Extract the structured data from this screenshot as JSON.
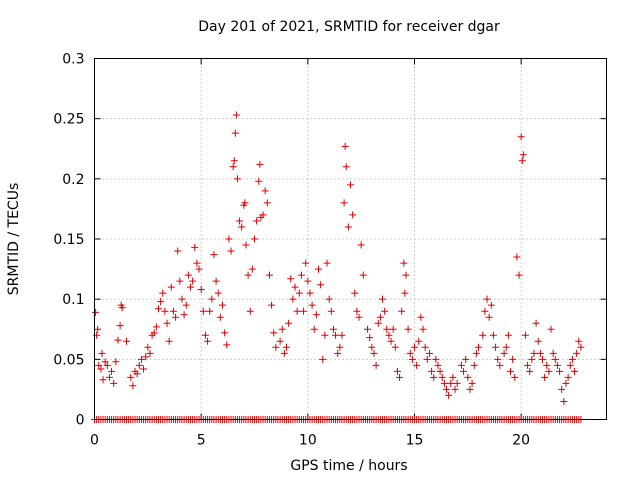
{
  "chart_data": {
    "type": "scatter",
    "title": "Day 201 of 2021, SRMTID for receiver dgar",
    "xlabel": "GPS time / hours",
    "ylabel": "SRMTID / TECUs",
    "xlim": [
      0,
      24
    ],
    "ylim": [
      0,
      0.3
    ],
    "xticks": [
      0,
      5,
      10,
      15,
      20
    ],
    "yticks": [
      0,
      0.05,
      0.1,
      0.15,
      0.2,
      0.25,
      0.3
    ],
    "xtick_labels": [
      "0",
      "5",
      "10",
      "15",
      "20"
    ],
    "ytick_labels": [
      "0",
      "0.05",
      "0.1",
      "0.15",
      "0.2",
      "0.25",
      "0.3"
    ],
    "grid": true,
    "marker": "+",
    "color": "#dd0000",
    "series": [
      {
        "name": "SRMTID",
        "points": [
          [
            0.05,
            0.089
          ],
          [
            0.1,
            0.07
          ],
          [
            0.15,
            0.075
          ],
          [
            0.2,
            0.045
          ],
          [
            0.3,
            0.042
          ],
          [
            0.35,
            0.055
          ],
          [
            0.4,
            0.033
          ],
          [
            0.5,
            0.048
          ],
          [
            0.6,
            0.045
          ],
          [
            0.7,
            0.035
          ],
          [
            0.8,
            0.04
          ],
          [
            0.9,
            0.03
          ],
          [
            1.0,
            0.048
          ],
          [
            1.1,
            0.066
          ],
          [
            1.2,
            0.078
          ],
          [
            1.25,
            0.095
          ],
          [
            1.3,
            0.093
          ],
          [
            1.5,
            0.065
          ],
          [
            1.7,
            0.035
          ],
          [
            1.8,
            0.028
          ],
          [
            1.9,
            0.04
          ],
          [
            2.0,
            0.038
          ],
          [
            2.1,
            0.045
          ],
          [
            2.2,
            0.05
          ],
          [
            2.3,
            0.042
          ],
          [
            2.4,
            0.052
          ],
          [
            2.5,
            0.06
          ],
          [
            2.6,
            0.055
          ],
          [
            2.7,
            0.07
          ],
          [
            2.8,
            0.072
          ],
          [
            2.9,
            0.077
          ],
          [
            3.0,
            0.092
          ],
          [
            3.1,
            0.098
          ],
          [
            3.2,
            0.105
          ],
          [
            3.3,
            0.09
          ],
          [
            3.4,
            0.08
          ],
          [
            3.5,
            0.065
          ],
          [
            3.6,
            0.11
          ],
          [
            3.7,
            0.09
          ],
          [
            3.8,
            0.085
          ],
          [
            3.9,
            0.14
          ],
          [
            4.0,
            0.115
          ],
          [
            4.1,
            0.1
          ],
          [
            4.2,
            0.087
          ],
          [
            4.3,
            0.095
          ],
          [
            4.4,
            0.12
          ],
          [
            4.5,
            0.11
          ],
          [
            4.6,
            0.115
          ],
          [
            4.7,
            0.143
          ],
          [
            4.8,
            0.13
          ],
          [
            4.9,
            0.125
          ],
          [
            5.0,
            0.108
          ],
          [
            5.1,
            0.09
          ],
          [
            5.2,
            0.07
          ],
          [
            5.3,
            0.065
          ],
          [
            5.4,
            0.09
          ],
          [
            5.5,
            0.1
          ],
          [
            5.6,
            0.137
          ],
          [
            5.7,
            0.115
          ],
          [
            5.8,
            0.105
          ],
          [
            5.9,
            0.085
          ],
          [
            6.0,
            0.095
          ],
          [
            6.1,
            0.072
          ],
          [
            6.2,
            0.062
          ],
          [
            6.3,
            0.15
          ],
          [
            6.4,
            0.14
          ],
          [
            6.5,
            0.21
          ],
          [
            6.55,
            0.215
          ],
          [
            6.6,
            0.238
          ],
          [
            6.65,
            0.253
          ],
          [
            6.7,
            0.2
          ],
          [
            6.8,
            0.165
          ],
          [
            6.9,
            0.16
          ],
          [
            7.0,
            0.178
          ],
          [
            7.05,
            0.18
          ],
          [
            7.1,
            0.145
          ],
          [
            7.2,
            0.12
          ],
          [
            7.3,
            0.09
          ],
          [
            7.4,
            0.125
          ],
          [
            7.5,
            0.15
          ],
          [
            7.6,
            0.165
          ],
          [
            7.7,
            0.198
          ],
          [
            7.75,
            0.212
          ],
          [
            7.8,
            0.168
          ],
          [
            7.9,
            0.17
          ],
          [
            8.0,
            0.19
          ],
          [
            8.1,
            0.18
          ],
          [
            8.2,
            0.12
          ],
          [
            8.3,
            0.095
          ],
          [
            8.4,
            0.072
          ],
          [
            8.5,
            0.06
          ],
          [
            8.7,
            0.065
          ],
          [
            8.8,
            0.075
          ],
          [
            8.9,
            0.055
          ],
          [
            9.0,
            0.06
          ],
          [
            9.1,
            0.08
          ],
          [
            9.2,
            0.117
          ],
          [
            9.3,
            0.1
          ],
          [
            9.4,
            0.11
          ],
          [
            9.5,
            0.09
          ],
          [
            9.6,
            0.105
          ],
          [
            9.7,
            0.12
          ],
          [
            9.8,
            0.09
          ],
          [
            9.9,
            0.13
          ],
          [
            10.0,
            0.115
          ],
          [
            10.1,
            0.105
          ],
          [
            10.2,
            0.095
          ],
          [
            10.3,
            0.075
          ],
          [
            10.4,
            0.087
          ],
          [
            10.5,
            0.125
          ],
          [
            10.6,
            0.112
          ],
          [
            10.7,
            0.05
          ],
          [
            10.8,
            0.07
          ],
          [
            10.9,
            0.13
          ],
          [
            11.0,
            0.1
          ],
          [
            11.1,
            0.09
          ],
          [
            11.2,
            0.075
          ],
          [
            11.3,
            0.07
          ],
          [
            11.4,
            0.055
          ],
          [
            11.5,
            0.06
          ],
          [
            11.6,
            0.07
          ],
          [
            11.7,
            0.18
          ],
          [
            11.75,
            0.227
          ],
          [
            11.8,
            0.21
          ],
          [
            11.9,
            0.16
          ],
          [
            12.0,
            0.195
          ],
          [
            12.1,
            0.17
          ],
          [
            12.2,
            0.105
          ],
          [
            12.3,
            0.09
          ],
          [
            12.4,
            0.085
          ],
          [
            12.5,
            0.145
          ],
          [
            12.6,
            0.12
          ],
          [
            12.8,
            0.075
          ],
          [
            12.9,
            0.068
          ],
          [
            13.0,
            0.06
          ],
          [
            13.1,
            0.055
          ],
          [
            13.2,
            0.045
          ],
          [
            13.3,
            0.08
          ],
          [
            13.4,
            0.085
          ],
          [
            13.5,
            0.1
          ],
          [
            13.6,
            0.09
          ],
          [
            13.7,
            0.075
          ],
          [
            13.8,
            0.07
          ],
          [
            13.9,
            0.065
          ],
          [
            14.0,
            0.075
          ],
          [
            14.1,
            0.06
          ],
          [
            14.2,
            0.04
          ],
          [
            14.3,
            0.035
          ],
          [
            14.4,
            0.09
          ],
          [
            14.5,
            0.13
          ],
          [
            14.55,
            0.105
          ],
          [
            14.6,
            0.12
          ],
          [
            14.7,
            0.075
          ],
          [
            14.8,
            0.055
          ],
          [
            14.9,
            0.05
          ],
          [
            15.0,
            0.06
          ],
          [
            15.1,
            0.045
          ],
          [
            15.2,
            0.065
          ],
          [
            15.3,
            0.085
          ],
          [
            15.4,
            0.075
          ],
          [
            15.5,
            0.06
          ],
          [
            15.6,
            0.05
          ],
          [
            15.7,
            0.055
          ],
          [
            15.8,
            0.04
          ],
          [
            15.9,
            0.035
          ],
          [
            16.0,
            0.05
          ],
          [
            16.1,
            0.045
          ],
          [
            16.2,
            0.04
          ],
          [
            16.3,
            0.035
          ],
          [
            16.4,
            0.03
          ],
          [
            16.5,
            0.025
          ],
          [
            16.6,
            0.02
          ],
          [
            16.7,
            0.03
          ],
          [
            16.8,
            0.035
          ],
          [
            16.9,
            0.025
          ],
          [
            17.0,
            0.03
          ],
          [
            17.2,
            0.045
          ],
          [
            17.3,
            0.04
          ],
          [
            17.4,
            0.05
          ],
          [
            17.5,
            0.035
          ],
          [
            17.6,
            0.025
          ],
          [
            17.7,
            0.03
          ],
          [
            17.8,
            0.045
          ],
          [
            17.9,
            0.055
          ],
          [
            18.0,
            0.06
          ],
          [
            18.2,
            0.07
          ],
          [
            18.3,
            0.09
          ],
          [
            18.4,
            0.1
          ],
          [
            18.5,
            0.085
          ],
          [
            18.6,
            0.095
          ],
          [
            18.7,
            0.07
          ],
          [
            18.8,
            0.06
          ],
          [
            18.9,
            0.05
          ],
          [
            19.0,
            0.045
          ],
          [
            19.2,
            0.055
          ],
          [
            19.3,
            0.06
          ],
          [
            19.4,
            0.07
          ],
          [
            19.5,
            0.04
          ],
          [
            19.6,
            0.05
          ],
          [
            19.7,
            0.035
          ],
          [
            19.8,
            0.135
          ],
          [
            19.9,
            0.12
          ],
          [
            20.0,
            0.235
          ],
          [
            20.05,
            0.215
          ],
          [
            20.1,
            0.22
          ],
          [
            20.2,
            0.07
          ],
          [
            20.3,
            0.045
          ],
          [
            20.4,
            0.04
          ],
          [
            20.5,
            0.05
          ],
          [
            20.6,
            0.055
          ],
          [
            20.7,
            0.08
          ],
          [
            20.8,
            0.065
          ],
          [
            20.9,
            0.055
          ],
          [
            21.0,
            0.05
          ],
          [
            21.1,
            0.035
          ],
          [
            21.2,
            0.045
          ],
          [
            21.3,
            0.04
          ],
          [
            21.4,
            0.075
          ],
          [
            21.5,
            0.055
          ],
          [
            21.6,
            0.05
          ],
          [
            21.7,
            0.045
          ],
          [
            21.8,
            0.04
          ],
          [
            21.9,
            0.025
          ],
          [
            22.0,
            0.015
          ],
          [
            22.1,
            0.03
          ],
          [
            22.2,
            0.035
          ],
          [
            22.3,
            0.045
          ],
          [
            22.4,
            0.05
          ],
          [
            22.5,
            0.04
          ],
          [
            22.6,
            0.055
          ],
          [
            22.7,
            0.065
          ],
          [
            22.8,
            0.06
          ]
        ],
        "zero_points": {
          "x_start": 0.0,
          "x_end": 22.8,
          "step": 0.1,
          "y": 0
        }
      }
    ]
  }
}
